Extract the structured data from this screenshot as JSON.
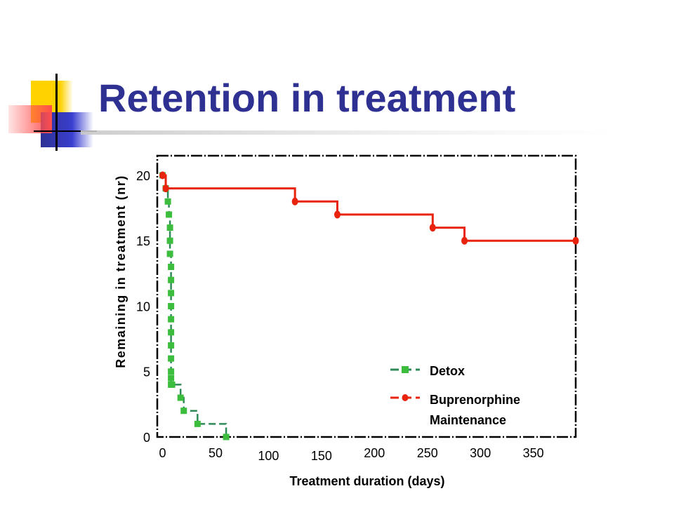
{
  "slide": {
    "title": "Retention in treatment"
  },
  "colors": {
    "title": "#2e3192",
    "detox_marker": "#3dbd3d",
    "detox_line": "#2e8b57",
    "bupe": "#e8240f"
  },
  "chart_data": {
    "type": "line",
    "xlabel": "Treatment duration (days)",
    "ylabel": "Remaining in treatment  (nr)",
    "xlim": [
      -5,
      390
    ],
    "ylim": [
      0,
      21.5
    ],
    "xticks": [
      0,
      50,
      100,
      150,
      200,
      250,
      300,
      350
    ],
    "xtick_labels": [
      "0",
      "50",
      "100",
      "150",
      "200",
      "250",
      "300",
      "350"
    ],
    "yticks": [
      0,
      5,
      10,
      15,
      20
    ],
    "ytick_labels": [
      "0",
      "5",
      "10",
      "15",
      "20"
    ],
    "grid": false,
    "legend_position": "bottom-right",
    "series": [
      {
        "name": "Detox",
        "step": true,
        "marker": "square",
        "x": [
          0,
          3,
          5,
          6,
          7,
          7,
          7,
          8,
          8,
          8,
          8,
          8,
          8,
          8,
          8,
          8,
          8,
          8,
          9,
          17,
          20,
          33,
          60
        ],
        "y": [
          20,
          19,
          18,
          17,
          16,
          15,
          14,
          13,
          12,
          11,
          10,
          9,
          8,
          7,
          6,
          5,
          4.5,
          4,
          4,
          3,
          2,
          1,
          0
        ]
      },
      {
        "name": "Buprenorphine Maintenance",
        "step": true,
        "marker": "circle",
        "x": [
          0,
          3,
          125,
          165,
          255,
          285,
          390
        ],
        "y": [
          20,
          19,
          18,
          17,
          16,
          15,
          15
        ]
      }
    ]
  }
}
